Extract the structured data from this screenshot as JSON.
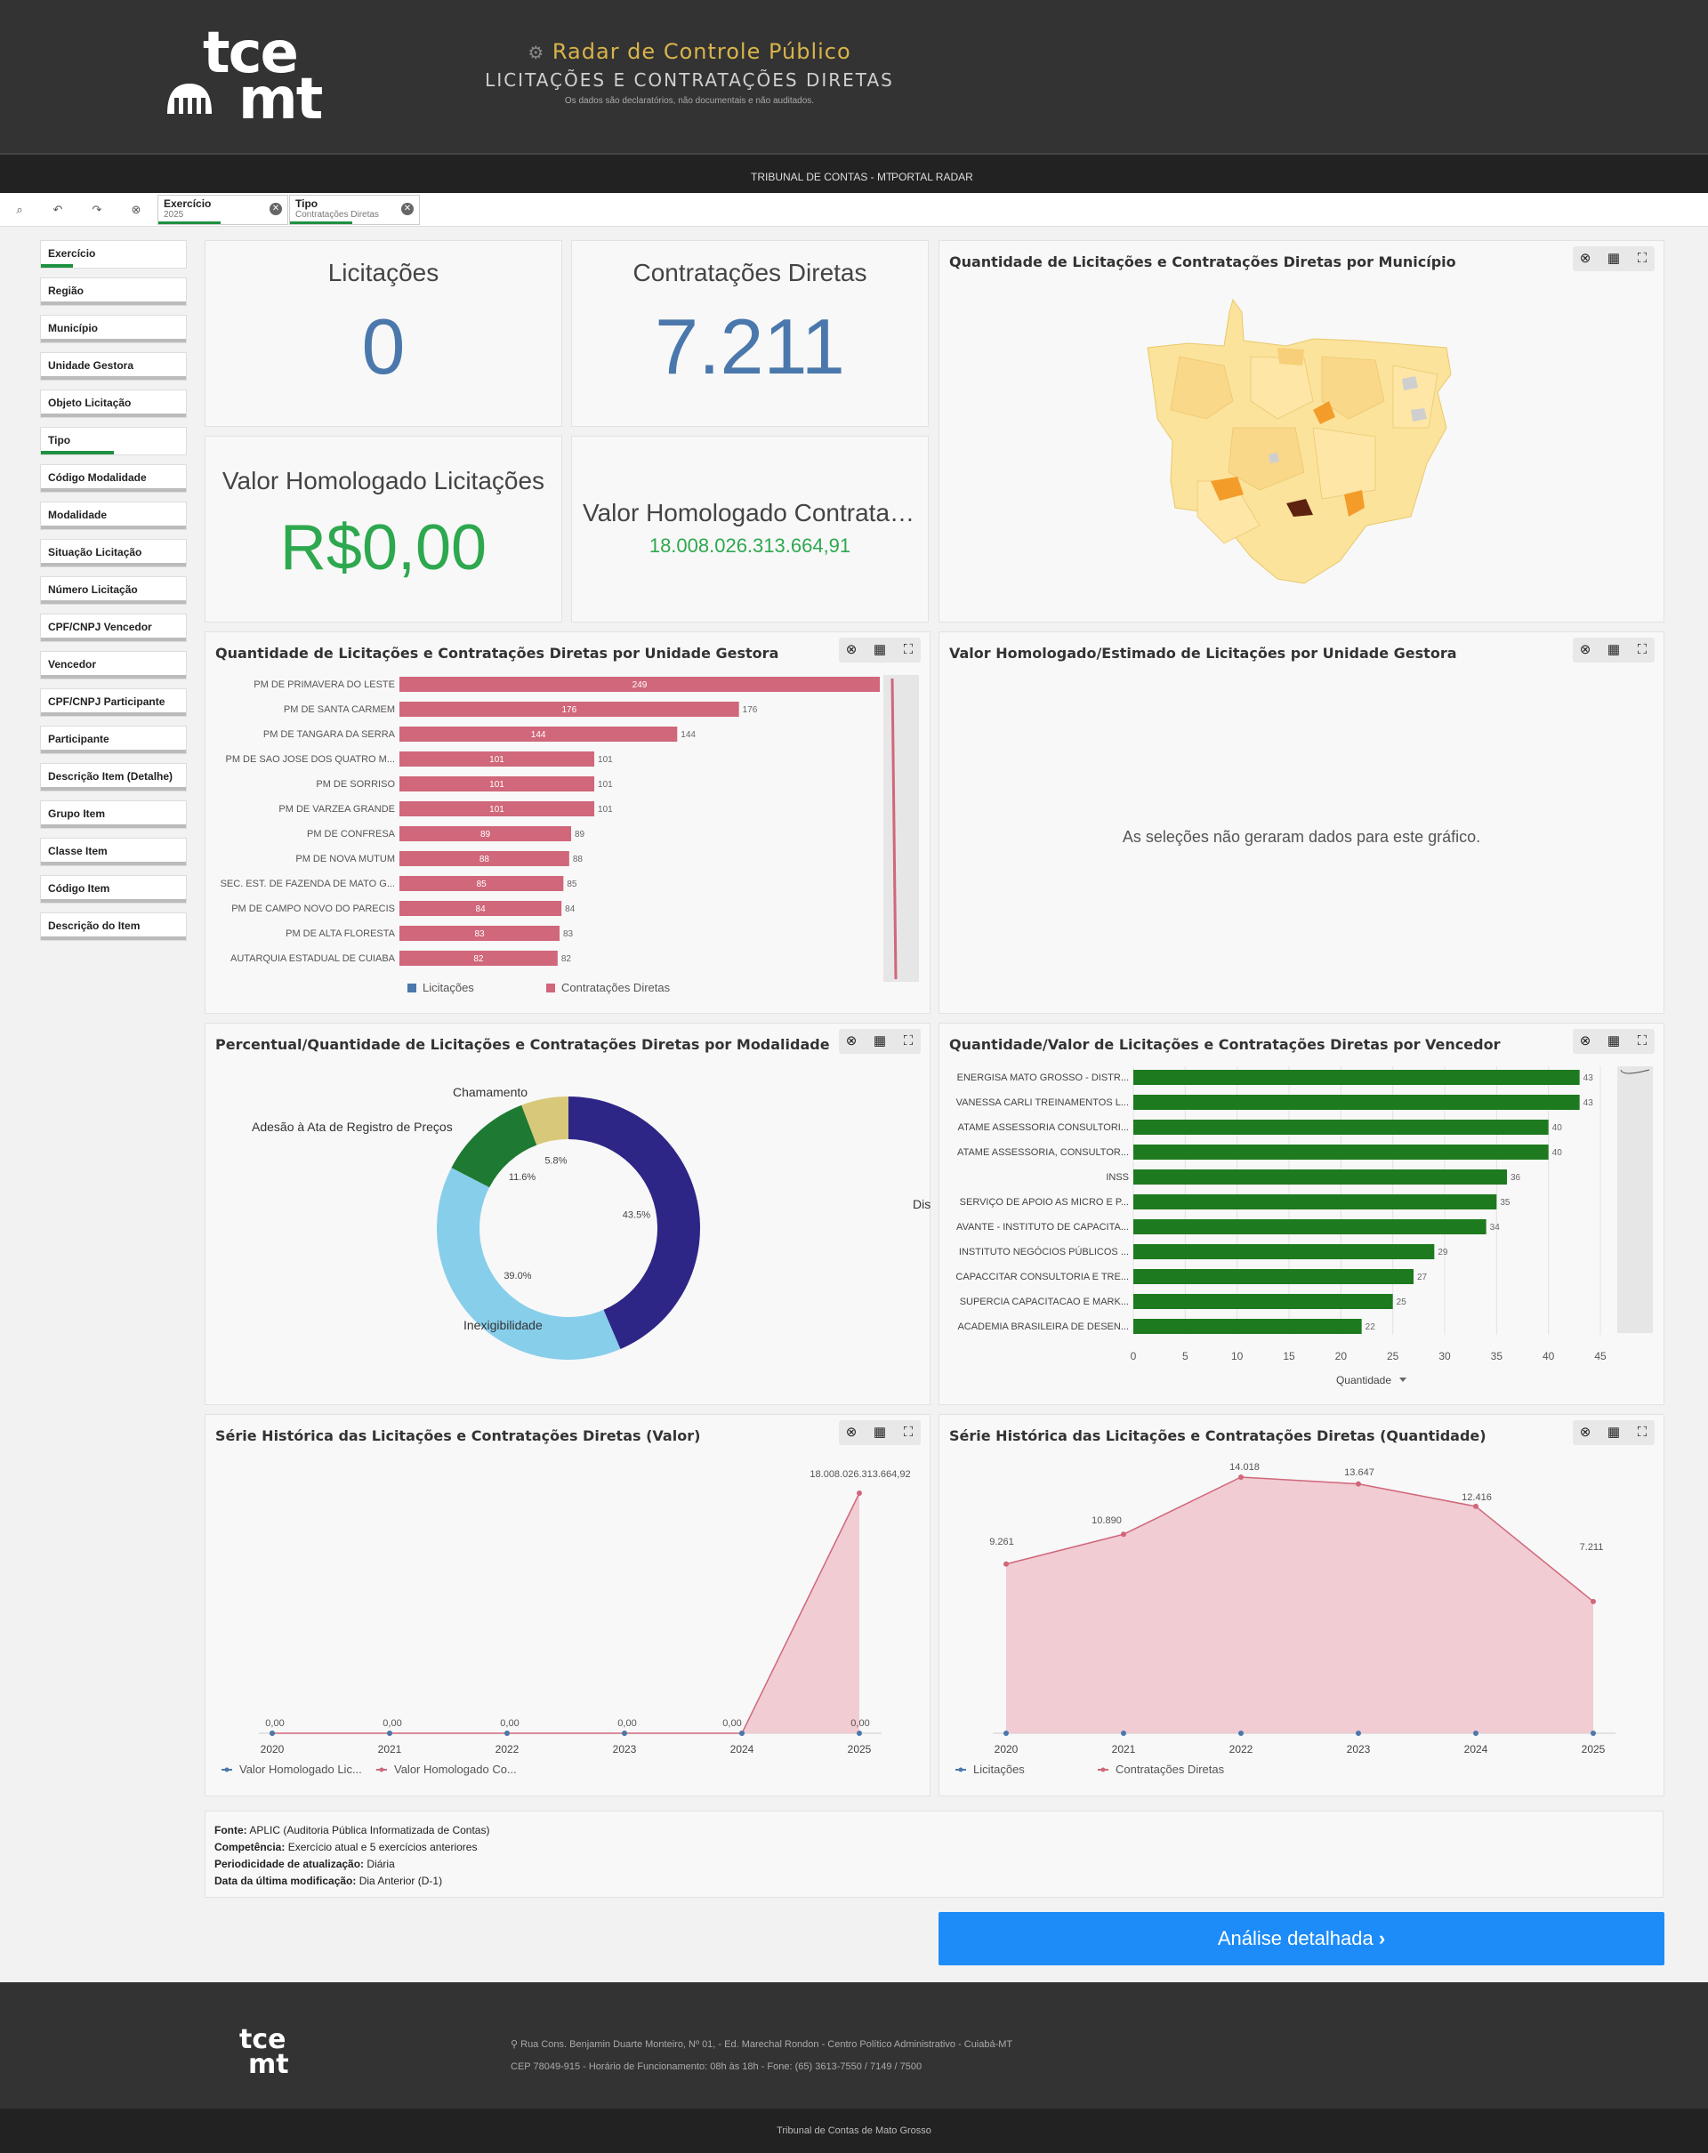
{
  "header": {
    "logo_top": "tce",
    "logo_bottom": "mt",
    "title": "Radar de Controle Público",
    "subtitle": "LICITAÇÕES E CONTRATAÇÕES DIRETAS",
    "disclaimer": "Os dados são declaratórios, não documentais e não auditados."
  },
  "nav": {
    "link1": "TRIBUNAL DE CONTAS - MT",
    "link2": "PORTAL RADAR"
  },
  "selections": [
    {
      "label": "Exercício",
      "value": "2025"
    },
    {
      "label": "Tipo",
      "value": "Contratações Diretas"
    }
  ],
  "filters": [
    "Exercício",
    "Região",
    "Município",
    "Unidade Gestora",
    "Objeto Licitação",
    "Tipo",
    "Código Modalidade",
    "Modalidade",
    "Situação Licitação",
    "Número Licitação",
    "CPF/CNPJ Vencedor",
    "Vencedor",
    "CPF/CNPJ Participante",
    "Participante",
    "Descrição Item (Detalhe)",
    "Grupo Item",
    "Classe Item",
    "Código Item",
    "Descrição do Item"
  ],
  "kpis": {
    "lic_title": "Licitações",
    "lic_value": "0",
    "cd_title": "Contratações Diretas",
    "cd_value": "7.211",
    "vhl_title": "Valor Homologado Licitações",
    "vhl_value": "R$0,00",
    "vhc_title": "Valor Homologado Contratações Diretas",
    "vhc_value": "18.008.026.313.664,91"
  },
  "map_panel": {
    "title": "Quantidade de Licitações e Contratações Diretas por Município"
  },
  "ug_chart": {
    "title": "Quantidade de Licitações e Contratações Diretas por Unidade Gestora",
    "legend": [
      "Licitações",
      "Contratações Diretas"
    ]
  },
  "vh_panel": {
    "title": "Valor Homologado/Estimado de Licitações por Unidade Gestora",
    "empty_msg": "As seleções não geraram dados para este gráfico."
  },
  "mod_chart": {
    "title": "Percentual/Quantidade de Licitações e Contratações Diretas por Modalidade"
  },
  "vend_chart": {
    "title": "Quantidade/Valor de Licitações e Contratações Diretas por Vencedor",
    "xlabel": "Quantidade"
  },
  "sv_chart": {
    "title": "Série Histórica das Licitações e Contratações Diretas (Valor)",
    "legend": [
      "Valor Homologado Lic...",
      "Valor Homologado Co..."
    ]
  },
  "sq_chart": {
    "title": "Série Histórica das Licitações e Contratações Diretas (Quantidade)",
    "legend": [
      "Licitações",
      "Contratações Diretas"
    ]
  },
  "source": {
    "fonte_label": "Fonte:",
    "fonte": "APLIC (Auditoria Pública Informatizada de Contas)",
    "comp_label": "Competência:",
    "comp": "Exercício atual e 5 exercícios anteriores",
    "per_label": "Periodicidade de atualização:",
    "per": "Diária",
    "data_label": "Data da última modificação:",
    "data": "Dia Anterior (D-1)"
  },
  "detail_button": "Análise detalhada",
  "footer": {
    "address": "Rua Cons. Benjamin Duarte Monteiro, Nº 01, - Ed. Marechal Rondon - Centro Político Administrativo - Cuiabá-MT",
    "contact": "CEP 78049-915 - Horário de Funcionamento: 08h às 18h - Fone: (65) 3613-7550 / 7149 / 7500",
    "bottom": "Tribunal de Contas de Mato Grosso"
  },
  "colors": {
    "lic": "#4a78ac",
    "cd": "#d0677a",
    "green": "#1e7a1e",
    "kpi_green": "#2ea84f"
  },
  "chart_data": [
    {
      "type": "bar",
      "orientation": "horizontal",
      "categories": [
        "PM DE PRIMAVERA DO LESTE",
        "PM DE SANTA CARMEM",
        "PM DE TANGARA DA SERRA",
        "PM DE SAO JOSE DOS QUATRO M...",
        "PM DE SORRISO",
        "PM DE VARZEA GRANDE",
        "PM DE CONFRESA",
        "PM DE NOVA MUTUM",
        "SEC. EST. DE FAZENDA DE MATO G...",
        "PM DE CAMPO NOVO DO PARECIS",
        "PM DE ALTA FLORESTA",
        "AUTARQUIA ESTADUAL DE CUIABA"
      ],
      "series": [
        {
          "name": "Contratações Diretas",
          "values": [
            249,
            176,
            144,
            101,
            101,
            101,
            89,
            88,
            85,
            84,
            83,
            82
          ]
        }
      ],
      "xlim": [
        0,
        249
      ]
    },
    {
      "type": "pie",
      "categories": [
        "Dispensa",
        "Inexigibilidade",
        "Adesão à Ata de Registro de Preços",
        "Chamamento"
      ],
      "values": [
        43.5,
        39.0,
        11.6,
        5.8
      ],
      "colors": [
        "#2e2686",
        "#87ceeb",
        "#1e7a32",
        "#d8c87a"
      ]
    },
    {
      "type": "bar",
      "orientation": "horizontal",
      "categories": [
        "ENERGISA MATO GROSSO - DISTR...",
        "VANESSA CARLI TREINAMENTOS L...",
        "ATAME ASSESSORIA CONSULTORI...",
        "ATAME ASSESSORIA, CONSULTOR...",
        "INSS",
        "SERVIÇO DE APOIO AS MICRO E P...",
        "AVANTE - INSTITUTO DE CAPACITA...",
        "INSTITUTO NEGÓCIOS PÚBLICOS ...",
        "CAPACCITAR CONSULTORIA E TRE...",
        "SUPERCIA CAPACITACAO E MARK...",
        "ACADEMIA BRASILEIRA DE DESEN..."
      ],
      "values": [
        43,
        43,
        40,
        40,
        36,
        35,
        34,
        29,
        27,
        25,
        22
      ],
      "xlim": [
        0,
        45
      ],
      "xticks": [
        0,
        5,
        10,
        15,
        20,
        25,
        30,
        35,
        40,
        45
      ],
      "xlabel": "Quantidade"
    },
    {
      "type": "area",
      "x": [
        "2020",
        "2021",
        "2022",
        "2023",
        "2024",
        "2025"
      ],
      "series": [
        {
          "name": "Valor Homologado Lic...",
          "values": [
            0,
            0,
            0,
            0,
            0,
            0
          ]
        },
        {
          "name": "Valor Homologado Co...",
          "values": [
            0,
            0,
            0,
            0,
            0,
            18008026313664.92
          ]
        }
      ],
      "labels": [
        "0,00",
        "0,00",
        "0,00",
        "0,00",
        "0,00",
        "18.008.026.313.664,92",
        "0,00"
      ]
    },
    {
      "type": "area",
      "x": [
        "2020",
        "2021",
        "2022",
        "2023",
        "2024",
        "2025"
      ],
      "series": [
        {
          "name": "Licitações",
          "values": [
            0,
            0,
            0,
            0,
            0,
            0
          ]
        },
        {
          "name": "Contratações Diretas",
          "values": [
            9261,
            10890,
            14018,
            13647,
            12416,
            7211
          ]
        }
      ],
      "ylim": [
        0,
        14018
      ],
      "labels": [
        "9.261",
        "10.890",
        "14.018",
        "13.647",
        "12.416",
        "7.211"
      ]
    }
  ]
}
